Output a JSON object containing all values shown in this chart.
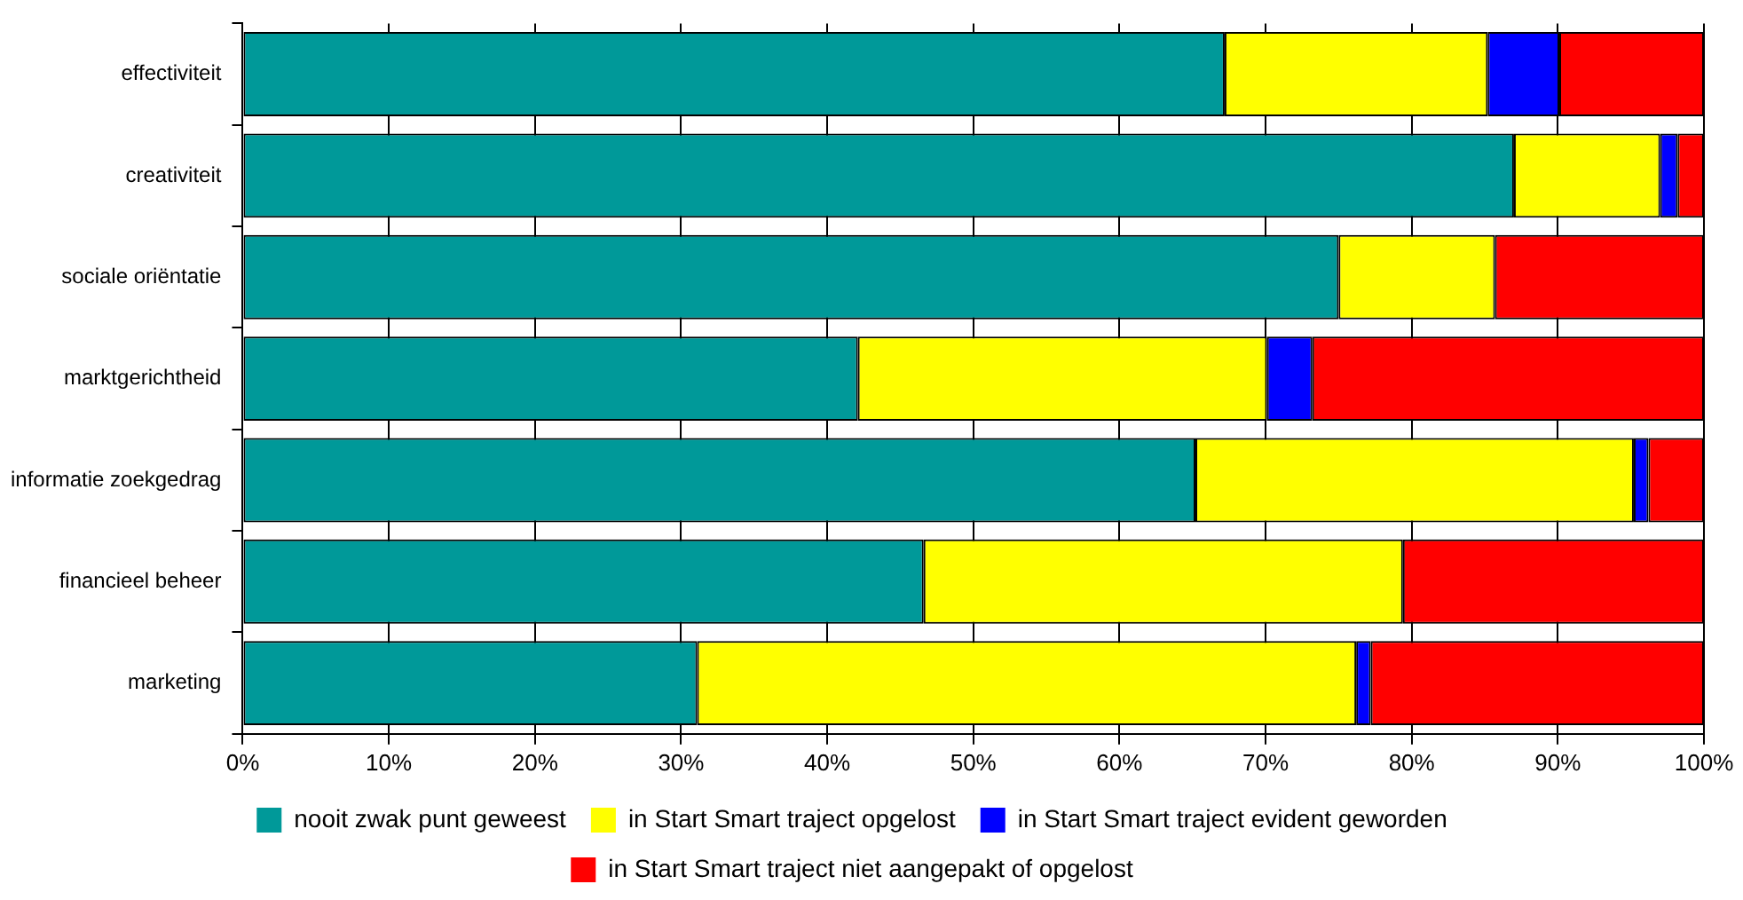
{
  "chart_data": {
    "type": "bar",
    "orientation": "horizontal",
    "stacked": true,
    "categories": [
      "effectiviteit",
      "creativiteit",
      "sociale oriëntatie",
      "marktgerichtheid",
      "informatie zoekgedrag",
      "financieel beheer",
      "marketing"
    ],
    "series": [
      {
        "name": "nooit zwak punt geweest",
        "color": "#009999",
        "values": [
          67.2,
          87.0,
          75.0,
          42.1,
          65.2,
          46.6,
          31.1
        ]
      },
      {
        "name": "in Start Smart traject opgelost",
        "color": "#ffff00",
        "values": [
          18.0,
          10.0,
          10.7,
          28.0,
          30.0,
          32.8,
          45.1
        ]
      },
      {
        "name": "in Start Smart traject evident geworden",
        "color": "#0000ff",
        "values": [
          4.9,
          1.2,
          0,
          3.1,
          1.0,
          0,
          1.0
        ]
      },
      {
        "name": "in Start Smart traject niet aangepakt of opgelost",
        "color": "#ff0000",
        "values": [
          9.9,
          1.8,
          14.3,
          26.8,
          3.8,
          20.6,
          22.8
        ]
      }
    ],
    "xlim": [
      0,
      100
    ],
    "xticks": [
      {
        "value": 0,
        "label": "0%"
      },
      {
        "value": 10,
        "label": "10%"
      },
      {
        "value": 20,
        "label": "20%"
      },
      {
        "value": 30,
        "label": "30%"
      },
      {
        "value": 40,
        "label": "40%"
      },
      {
        "value": 50,
        "label": "50%"
      },
      {
        "value": 60,
        "label": "60%"
      },
      {
        "value": 70,
        "label": "70%"
      },
      {
        "value": 80,
        "label": "80%"
      },
      {
        "value": 90,
        "label": "90%"
      },
      {
        "value": 100,
        "label": "100%"
      }
    ],
    "grid": "x",
    "legend": "bottom"
  }
}
